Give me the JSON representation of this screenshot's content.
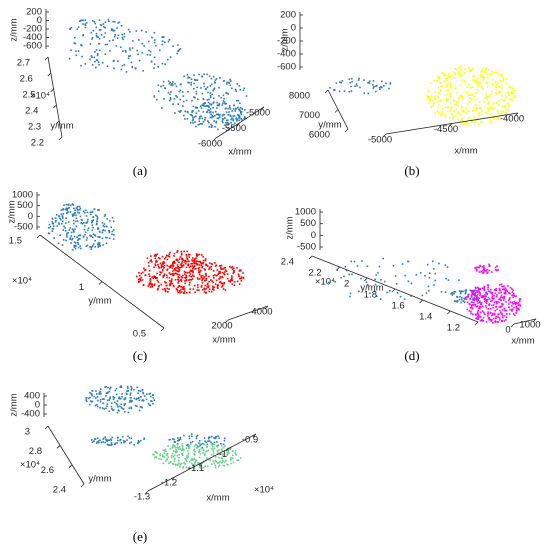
{
  "chart_data": [
    {
      "type": "scatter3d",
      "caption": "(a)",
      "x_label": "x/mm",
      "y_label": "y/mm",
      "z_label": "z/mm",
      "zticks": [
        200,
        0,
        -200,
        -400,
        -600
      ],
      "yticks": [
        2.2,
        2.3,
        2.4,
        2.5,
        2.6,
        2.7
      ],
      "y_multiplier": "×10⁴",
      "xticks": [
        -6000,
        -5500,
        -5000
      ],
      "series": [
        {
          "color": "#2b7bc0"
        }
      ]
    },
    {
      "type": "scatter3d",
      "caption": "(b)",
      "x_label": "x/mm",
      "y_label": "y/mm",
      "z_label": "z/mm",
      "zticks": [
        200,
        0,
        -200,
        -400,
        -600
      ],
      "yticks": [
        6000,
        7000,
        8000
      ],
      "xticks": [
        -5000,
        -4500,
        -4000
      ],
      "series": [
        {
          "color": "#2b7bc0"
        },
        {
          "color": "#ffff00"
        }
      ]
    },
    {
      "type": "scatter3d",
      "caption": "(c)",
      "x_label": "x/mm",
      "y_label": "y/mm",
      "z_label": "z/mm",
      "zticks": [
        1000,
        500,
        0,
        -500
      ],
      "yticks": [
        0.5,
        1,
        1.5
      ],
      "y_multiplier": "×10⁴",
      "xticks": [
        2000,
        4000
      ],
      "series": [
        {
          "color": "#2b7bc0"
        },
        {
          "color": "#ff0000"
        }
      ]
    },
    {
      "type": "scatter3d",
      "caption": "(d)",
      "x_label": "x/mm",
      "y_label": "y/mm",
      "z_label": "z/mm",
      "zticks": [
        1000,
        500,
        0,
        -500
      ],
      "yticks": [
        1.2,
        1.4,
        1.6,
        1.8,
        2,
        2.2,
        2.4
      ],
      "y_multiplier": "×10⁴",
      "xticks": [
        0,
        1000
      ],
      "series": [
        {
          "color": "#2b7bc0"
        },
        {
          "color": "#ff00ff"
        }
      ]
    },
    {
      "type": "scatter3d",
      "caption": "(e)",
      "x_label": "x/mm",
      "y_label": "y/mm",
      "z_label": "z/mm",
      "zticks": [
        400,
        0,
        -400
      ],
      "yticks": [
        2.4,
        2.6,
        2.8,
        3
      ],
      "y_multiplier": "×10⁴",
      "xticks": [
        -1.3,
        -1.2,
        -1.1,
        -1,
        -0.9
      ],
      "x_multiplier": "×10⁴",
      "series": [
        {
          "color": "#2b7bc0"
        },
        {
          "color": "#66d08a"
        }
      ]
    }
  ]
}
